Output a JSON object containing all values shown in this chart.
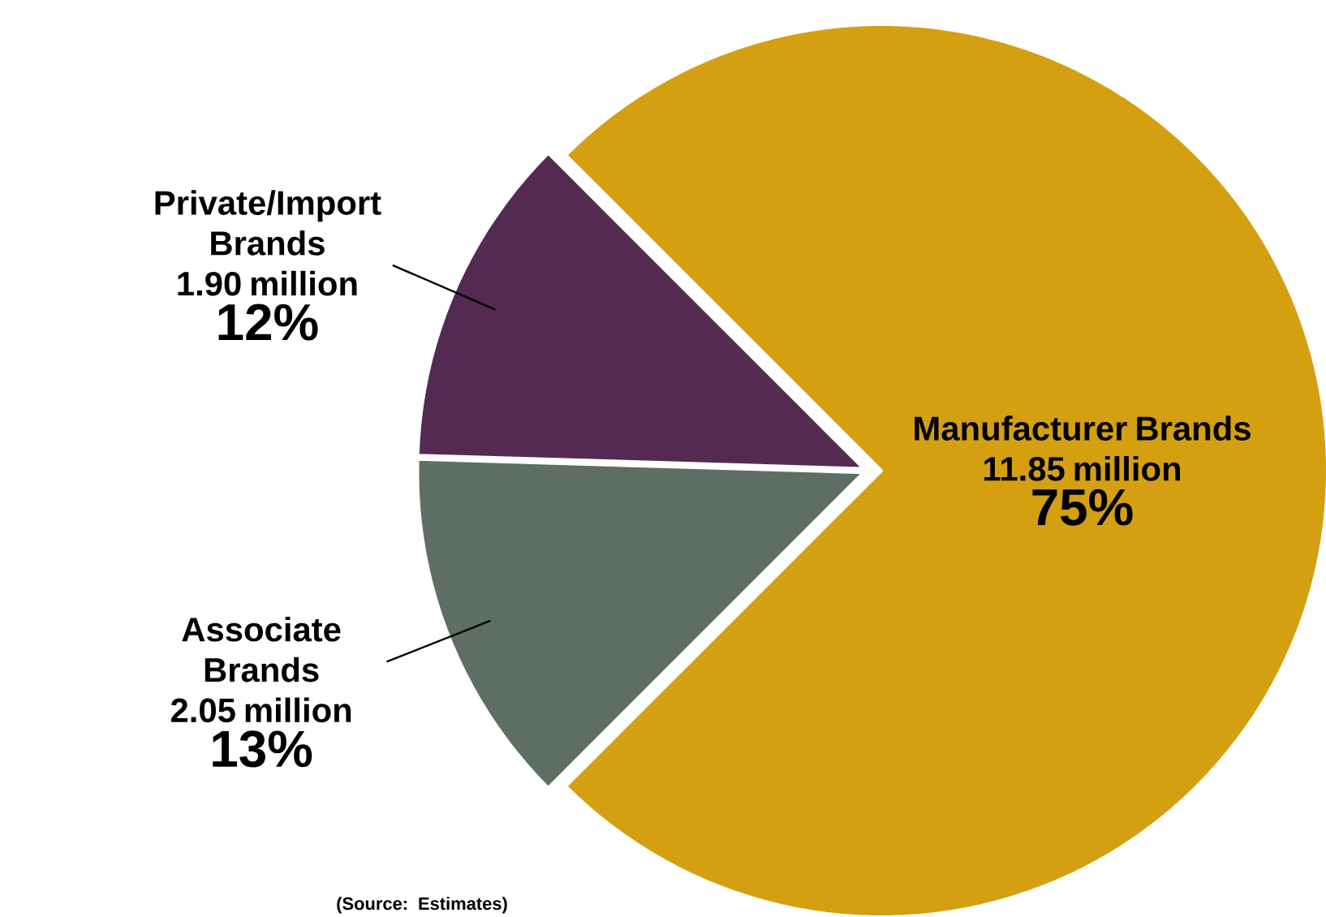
{
  "chart_data": {
    "type": "pie",
    "categories": [
      "Manufacturer Brands",
      "Associate Brands",
      "Private/Import Brands"
    ],
    "values": [
      11.85,
      2.05,
      1.9
    ],
    "value_labels": [
      "11.85 million",
      "2.05 million",
      "1.90 million"
    ],
    "colors": [
      "#d4a011",
      "#5e6e64",
      "#552a52"
    ],
    "annotations": [
      {
        "text": "75%",
        "x": "Manufacturer Brands"
      },
      {
        "text": "13%",
        "x": "Associate Brands"
      },
      {
        "text": "12%",
        "x": "Private/Import Brands"
      },
      "(Source: Estimates)"
    ]
  }
}
